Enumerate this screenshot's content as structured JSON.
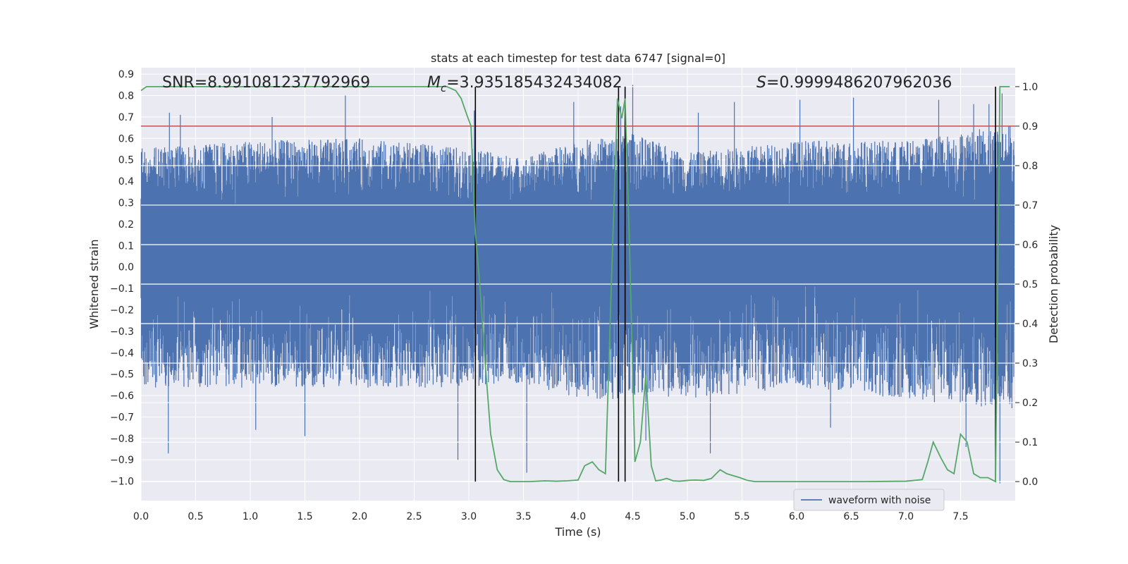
{
  "chart_data": {
    "type": "line",
    "title": "stats at each timestep for test data 6747 [signal=0]",
    "xlabel": "Time (s)",
    "ylabel": "Whitened strain",
    "y2label": "Detection probability",
    "xlim": [
      0.0,
      8.0
    ],
    "ylim": [
      -1.09,
      0.93
    ],
    "y2lim": [
      -0.048,
      1.048
    ],
    "grid": true,
    "x_ticks": [
      "0.0",
      "0.5",
      "1.0",
      "1.5",
      "2.0",
      "2.5",
      "3.0",
      "3.5",
      "4.0",
      "4.5",
      "5.0",
      "5.5",
      "6.0",
      "6.5",
      "7.0",
      "7.5"
    ],
    "y_ticks": [
      "0.9",
      "0.8",
      "0.7",
      "0.6",
      "0.5",
      "0.4",
      "0.3",
      "0.2",
      "0.1",
      "0.0",
      "−0.1",
      "−0.2",
      "−0.3",
      "−0.4",
      "−0.5",
      "−0.6",
      "−0.7",
      "−0.8",
      "−0.9",
      "−1.0"
    ],
    "y2_ticks": [
      "1.0",
      "0.9",
      "0.8",
      "0.7",
      "0.6",
      "0.5",
      "0.4",
      "0.3",
      "0.2",
      "0.1",
      "0.0"
    ],
    "annotations": {
      "snr": "SNR=8.991081237792969",
      "mc_symbol": "M",
      "mc_sub": "c",
      "mc_value": "=3.935185432434082",
      "s_symbol": "S",
      "s_value": "=0.9999486207962036"
    },
    "legend": {
      "label": "waveform with noise",
      "placement": "lower-right"
    },
    "threshold": {
      "value": 0.9,
      "axis": "right",
      "color": "#c44e52"
    },
    "vertical_lines": [
      3.06,
      4.37,
      4.43,
      7.82
    ],
    "vertical_line_range": [
      0.0,
      1.0
    ],
    "waveform": {
      "name": "waveform with noise",
      "color": "#4c72b0",
      "t_start": 0.0,
      "t_end": 7.99,
      "core_band": [
        -0.08,
        0.29
      ],
      "envelope_upper": [
        [
          0.0,
          0.52
        ],
        [
          1.0,
          0.55
        ],
        [
          2.0,
          0.56
        ],
        [
          3.0,
          0.52
        ],
        [
          3.5,
          0.48
        ],
        [
          4.0,
          0.55
        ],
        [
          4.5,
          0.58
        ],
        [
          5.0,
          0.5
        ],
        [
          6.0,
          0.55
        ],
        [
          7.0,
          0.55
        ],
        [
          7.99,
          0.62
        ]
      ],
      "envelope_lower": [
        [
          0.0,
          -0.5
        ],
        [
          1.0,
          -0.5
        ],
        [
          2.0,
          -0.5
        ],
        [
          3.0,
          -0.5
        ],
        [
          3.5,
          -0.48
        ],
        [
          4.0,
          -0.55
        ],
        [
          4.5,
          -0.55
        ],
        [
          5.0,
          -0.55
        ],
        [
          6.0,
          -0.5
        ],
        [
          7.0,
          -0.55
        ],
        [
          7.99,
          -0.6
        ]
      ],
      "peaks_up": [
        [
          0.26,
          0.72
        ],
        [
          0.36,
          0.71
        ],
        [
          1.2,
          0.7
        ],
        [
          1.87,
          0.8
        ],
        [
          3.05,
          0.73
        ],
        [
          4.39,
          0.75
        ],
        [
          4.5,
          0.85
        ],
        [
          3.96,
          0.77
        ],
        [
          5.43,
          0.77
        ],
        [
          5.1,
          0.72
        ],
        [
          6.03,
          0.78
        ],
        [
          6.52,
          0.79
        ],
        [
          7.3,
          0.78
        ],
        [
          7.62,
          0.76
        ],
        [
          7.76,
          0.76
        ],
        [
          7.88,
          0.81
        ]
      ],
      "peaks_down": [
        [
          0.25,
          -0.87
        ],
        [
          2.9,
          -0.9
        ],
        [
          3.53,
          -0.96
        ],
        [
          5.21,
          -0.87
        ],
        [
          7.55,
          -0.84
        ],
        [
          7.86,
          -1.01
        ],
        [
          1.5,
          -0.79
        ],
        [
          1.05,
          -0.76
        ],
        [
          4.62,
          -0.81
        ],
        [
          6.31,
          -0.75
        ]
      ]
    },
    "probability": {
      "name": "detection probability",
      "color": "#55a868",
      "x": [
        0.0,
        0.05,
        0.1,
        0.5,
        1.0,
        1.5,
        2.0,
        2.5,
        2.8,
        2.88,
        2.93,
        2.98,
        3.02,
        3.06,
        3.1,
        3.15,
        3.2,
        3.26,
        3.32,
        3.38,
        3.45,
        3.55,
        3.7,
        3.8,
        3.9,
        4.0,
        4.06,
        4.13,
        4.19,
        4.25,
        4.31,
        4.36,
        4.4,
        4.43,
        4.47,
        4.52,
        4.57,
        4.62,
        4.67,
        4.71,
        4.76,
        4.81,
        4.87,
        4.93,
        5.0,
        5.07,
        5.15,
        5.22,
        5.3,
        5.36,
        5.42,
        5.48,
        5.55,
        5.62,
        5.7,
        5.8,
        6.0,
        6.3,
        6.6,
        7.0,
        7.15,
        7.2,
        7.25,
        7.32,
        7.38,
        7.44,
        7.5,
        7.56,
        7.62,
        7.68,
        7.75,
        7.82,
        7.86,
        7.9,
        7.95
      ],
      "y": [
        0.99,
        1.0,
        1.0,
        1.0,
        1.0,
        1.0,
        1.0,
        1.0,
        1.0,
        0.99,
        0.97,
        0.93,
        0.9,
        0.63,
        0.5,
        0.3,
        0.12,
        0.03,
        0.005,
        0.0,
        0.0,
        0.0,
        0.002,
        0.001,
        0.002,
        0.004,
        0.04,
        0.05,
        0.03,
        0.02,
        0.55,
        0.97,
        0.92,
        0.97,
        0.6,
        0.05,
        0.1,
        0.27,
        0.04,
        0.002,
        0.004,
        0.008,
        0.002,
        0.001,
        0.003,
        0.004,
        0.003,
        0.008,
        0.03,
        0.02,
        0.015,
        0.01,
        0.003,
        0.0,
        0.0,
        0.0,
        0.0,
        0.0,
        0.0,
        0.001,
        0.005,
        0.05,
        0.1,
        0.06,
        0.03,
        0.02,
        0.12,
        0.1,
        0.02,
        0.01,
        0.01,
        0.0,
        1.0,
        1.0,
        1.0
      ]
    }
  }
}
